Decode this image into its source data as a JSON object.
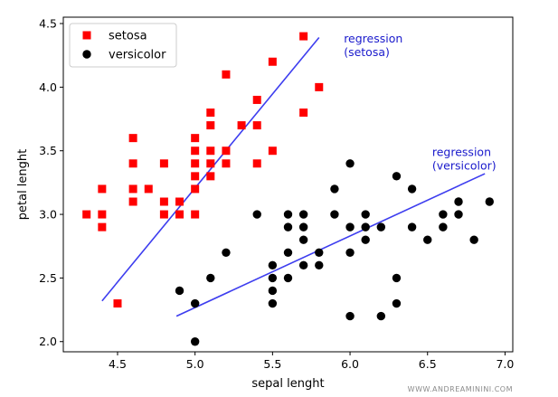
{
  "watermark": "WWW.ANDREAMININI.COM",
  "chart_data": {
    "type": "scatter",
    "title": "",
    "xlabel": "sepal lenght",
    "ylabel": "petal lenght",
    "xlim": [
      4.15,
      7.05
    ],
    "ylim": [
      1.92,
      4.55
    ],
    "xticks": [
      4.5,
      5.0,
      5.5,
      6.0,
      6.5,
      7.0
    ],
    "yticks": [
      2.0,
      2.5,
      3.0,
      3.5,
      4.0,
      4.5
    ],
    "xtick_labels": [
      "4.5",
      "5.0",
      "5.5",
      "6.0",
      "6.5",
      "7.0"
    ],
    "ytick_labels": [
      "2.0",
      "2.5",
      "3.0",
      "3.5",
      "4.0",
      "4.5"
    ],
    "grid": false,
    "legend": "top-left",
    "series": [
      {
        "name": "setosa",
        "marker": "square",
        "color": "#ff0000",
        "points": [
          [
            4.3,
            3.0
          ],
          [
            4.4,
            3.2
          ],
          [
            4.4,
            3.0
          ],
          [
            4.4,
            2.9
          ],
          [
            4.5,
            2.3
          ],
          [
            4.6,
            3.6
          ],
          [
            4.6,
            3.4
          ],
          [
            4.6,
            3.2
          ],
          [
            4.6,
            3.1
          ],
          [
            4.7,
            3.2
          ],
          [
            4.8,
            3.4
          ],
          [
            4.8,
            3.1
          ],
          [
            4.8,
            3.0
          ],
          [
            4.9,
            3.1
          ],
          [
            4.9,
            3.0
          ],
          [
            5.0,
            3.6
          ],
          [
            5.0,
            3.5
          ],
          [
            5.0,
            3.4
          ],
          [
            5.0,
            3.3
          ],
          [
            5.0,
            3.2
          ],
          [
            5.0,
            3.0
          ],
          [
            5.1,
            3.8
          ],
          [
            5.1,
            3.7
          ],
          [
            5.1,
            3.5
          ],
          [
            5.1,
            3.4
          ],
          [
            5.1,
            3.3
          ],
          [
            5.2,
            4.1
          ],
          [
            5.2,
            3.5
          ],
          [
            5.2,
            3.4
          ],
          [
            5.3,
            3.7
          ],
          [
            5.4,
            3.9
          ],
          [
            5.4,
            3.7
          ],
          [
            5.4,
            3.4
          ],
          [
            5.5,
            4.2
          ],
          [
            5.5,
            3.5
          ],
          [
            5.7,
            4.4
          ],
          [
            5.7,
            3.8
          ],
          [
            5.8,
            4.0
          ]
        ]
      },
      {
        "name": "versicolor",
        "marker": "circle",
        "color": "#000000",
        "points": [
          [
            4.9,
            2.4
          ],
          [
            5.0,
            2.3
          ],
          [
            5.0,
            2.0
          ],
          [
            5.1,
            2.5
          ],
          [
            5.2,
            2.7
          ],
          [
            5.4,
            3.0
          ],
          [
            5.5,
            2.6
          ],
          [
            5.5,
            2.5
          ],
          [
            5.5,
            2.4
          ],
          [
            5.5,
            2.3
          ],
          [
            5.6,
            3.0
          ],
          [
            5.6,
            2.9
          ],
          [
            5.6,
            2.7
          ],
          [
            5.6,
            2.5
          ],
          [
            5.7,
            3.0
          ],
          [
            5.7,
            2.9
          ],
          [
            5.7,
            2.8
          ],
          [
            5.7,
            2.6
          ],
          [
            5.8,
            2.7
          ],
          [
            5.8,
            2.6
          ],
          [
            5.9,
            3.2
          ],
          [
            5.9,
            3.0
          ],
          [
            6.0,
            3.4
          ],
          [
            6.0,
            2.9
          ],
          [
            6.0,
            2.7
          ],
          [
            6.0,
            2.2
          ],
          [
            6.1,
            3.0
          ],
          [
            6.1,
            2.9
          ],
          [
            6.1,
            2.8
          ],
          [
            6.2,
            2.9
          ],
          [
            6.2,
            2.2
          ],
          [
            6.3,
            3.3
          ],
          [
            6.3,
            2.5
          ],
          [
            6.3,
            2.3
          ],
          [
            6.4,
            3.2
          ],
          [
            6.4,
            2.9
          ],
          [
            6.5,
            2.8
          ],
          [
            6.6,
            3.0
          ],
          [
            6.6,
            2.9
          ],
          [
            6.7,
            3.1
          ],
          [
            6.7,
            3.0
          ],
          [
            6.8,
            2.8
          ],
          [
            6.9,
            3.1
          ]
        ]
      }
    ],
    "lines": [
      {
        "name": "regression-setosa",
        "color": "#3333ee",
        "x": [
          4.4,
          5.8
        ],
        "y": [
          2.32,
          4.39
        ]
      },
      {
        "name": "regression-versicolor",
        "color": "#3333ee",
        "x": [
          4.88,
          6.87
        ],
        "y": [
          2.2,
          3.32
        ]
      }
    ],
    "annotations": [
      {
        "id": "setosa",
        "lines": [
          "regression",
          "(setosa)"
        ],
        "x": 5.96,
        "y": 4.35
      },
      {
        "id": "versicolor",
        "lines": [
          "regression",
          "(versicolor)"
        ],
        "x": 6.53,
        "y": 3.46
      }
    ]
  }
}
